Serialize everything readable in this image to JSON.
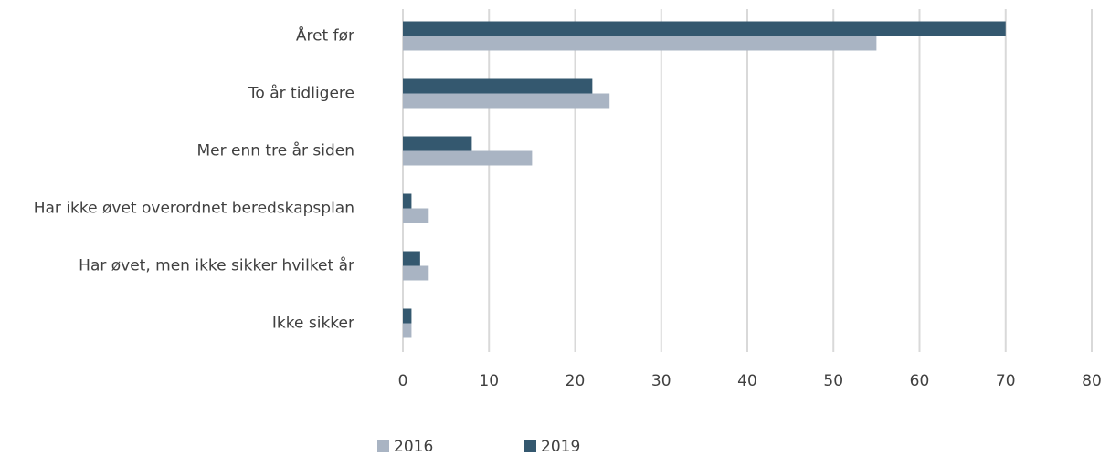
{
  "chart_data": {
    "type": "bar",
    "orientation": "horizontal",
    "categories": [
      "Året før",
      "To år tidligere",
      "Mer enn tre år siden",
      "Har ikke øvet overordnet beredskapsplan",
      "Har øvet, men ikke sikker hvilket år",
      "Ikke sikker"
    ],
    "series": [
      {
        "name": "2016",
        "color": "#a9b4c3",
        "values": [
          55,
          24,
          15,
          3,
          3,
          1
        ]
      },
      {
        "name": "2019",
        "color": "#34586f",
        "values": [
          70,
          22,
          8,
          1,
          2,
          1
        ]
      }
    ],
    "xlim": [
      0,
      80
    ],
    "xticks": [
      0,
      10,
      20,
      30,
      40,
      50,
      60,
      70,
      80
    ],
    "grid": true,
    "legend": "bottom"
  }
}
